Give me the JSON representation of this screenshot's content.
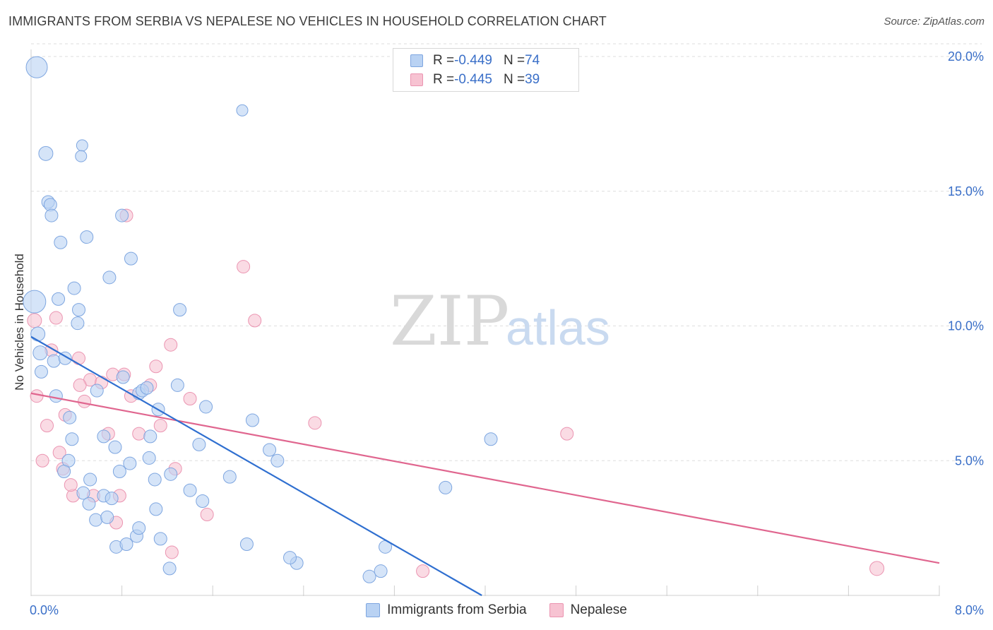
{
  "title": "IMMIGRANTS FROM SERBIA VS NEPALESE NO VEHICLES IN HOUSEHOLD CORRELATION CHART",
  "source": "Source: ZipAtlas.com",
  "watermark": {
    "zip": "ZIP",
    "atlas": "atlas"
  },
  "colors": {
    "blue_fill": "#b9d2f3",
    "blue_stroke": "#7ea6e0",
    "blue_line": "#2f6fd0",
    "pink_fill": "#f7c3d2",
    "pink_stroke": "#eb94b1",
    "pink_line": "#e0668f",
    "tick_text": "#3a6fc8"
  },
  "legend": {
    "rows": [
      {
        "r_label": "R = ",
        "r_value": "-0.449",
        "n_label": "N = ",
        "n_value": "74"
      },
      {
        "r_label": "R = ",
        "r_value": "-0.445",
        "n_label": "N = ",
        "n_value": "39"
      }
    ]
  },
  "chart_data": {
    "type": "scatter",
    "title": "IMMIGRANTS FROM SERBIA VS NEPALESE NO VEHICLES IN HOUSEHOLD CORRELATION CHART",
    "xlabel": "",
    "ylabel": "No Vehicles in Household",
    "xlim": [
      0,
      8
    ],
    "ylim": [
      0,
      20
    ],
    "x_tick_labels": [
      {
        "value": 0,
        "label": "0.0%"
      },
      {
        "value": 8,
        "label": "8.0%"
      }
    ],
    "y_tick_labels": [
      {
        "value": 5,
        "label": "5.0%"
      },
      {
        "value": 10,
        "label": "10.0%"
      },
      {
        "value": 15,
        "label": "15.0%"
      },
      {
        "value": 20,
        "label": "20.0%"
      }
    ],
    "grid": true,
    "legend_position": "top-center",
    "series": [
      {
        "name": "Immigrants from Serbia",
        "r": -0.449,
        "n": 74,
        "trend": {
          "x": [
            0,
            3.97
          ],
          "y": [
            9.6,
            0
          ]
        },
        "points": [
          [
            0.05,
            19.6,
            15
          ],
          [
            0.03,
            10.9,
            16
          ],
          [
            0.06,
            9.7,
            10
          ],
          [
            0.08,
            9.0,
            10
          ],
          [
            0.13,
            16.4,
            10
          ],
          [
            0.45,
            16.7,
            8
          ],
          [
            0.44,
            16.3,
            8
          ],
          [
            0.15,
            14.6,
            9
          ],
          [
            0.17,
            14.5,
            9
          ],
          [
            0.18,
            14.1,
            9
          ],
          [
            0.26,
            13.1,
            9
          ],
          [
            0.49,
            13.3,
            9
          ],
          [
            0.8,
            14.1,
            9
          ],
          [
            0.88,
            12.5,
            9
          ],
          [
            0.69,
            11.8,
            9
          ],
          [
            0.38,
            11.4,
            9
          ],
          [
            0.24,
            11.0,
            9
          ],
          [
            0.42,
            10.6,
            9
          ],
          [
            0.41,
            10.1,
            9
          ],
          [
            1.31,
            10.6,
            9
          ],
          [
            1.86,
            18.0,
            8
          ],
          [
            0.09,
            8.3,
            9
          ],
          [
            0.2,
            8.7,
            9
          ],
          [
            0.3,
            8.8,
            9
          ],
          [
            0.81,
            8.1,
            9
          ],
          [
            0.95,
            7.5,
            9
          ],
          [
            0.98,
            7.6,
            9
          ],
          [
            1.02,
            7.7,
            9
          ],
          [
            1.29,
            7.8,
            9
          ],
          [
            0.22,
            7.4,
            9
          ],
          [
            0.58,
            7.6,
            9
          ],
          [
            1.12,
            6.9,
            9
          ],
          [
            1.54,
            7.0,
            9
          ],
          [
            0.34,
            6.6,
            9
          ],
          [
            0.36,
            5.8,
            9
          ],
          [
            0.64,
            5.9,
            9
          ],
          [
            0.74,
            5.5,
            9
          ],
          [
            1.05,
            5.9,
            9
          ],
          [
            1.48,
            5.6,
            9
          ],
          [
            1.95,
            6.5,
            9
          ],
          [
            2.1,
            5.4,
            9
          ],
          [
            2.17,
            5.0,
            9
          ],
          [
            4.05,
            5.8,
            9
          ],
          [
            0.33,
            5.0,
            9
          ],
          [
            0.29,
            4.6,
            9
          ],
          [
            0.78,
            4.6,
            9
          ],
          [
            0.87,
            4.9,
            9
          ],
          [
            1.04,
            5.1,
            9
          ],
          [
            1.09,
            4.3,
            9
          ],
          [
            1.23,
            4.5,
            9
          ],
          [
            0.52,
            4.3,
            9
          ],
          [
            0.46,
            3.8,
            9
          ],
          [
            0.64,
            3.7,
            9
          ],
          [
            0.71,
            3.6,
            9
          ],
          [
            1.4,
            3.9,
            9
          ],
          [
            1.51,
            3.5,
            9
          ],
          [
            1.75,
            4.4,
            9
          ],
          [
            3.65,
            4.0,
            9
          ],
          [
            0.51,
            3.4,
            9
          ],
          [
            0.57,
            2.8,
            9
          ],
          [
            0.67,
            2.9,
            9
          ],
          [
            1.1,
            3.2,
            9
          ],
          [
            0.75,
            1.8,
            9
          ],
          [
            0.84,
            1.9,
            9
          ],
          [
            0.93,
            2.2,
            9
          ],
          [
            0.95,
            2.5,
            9
          ],
          [
            1.14,
            2.1,
            9
          ],
          [
            1.22,
            1.0,
            9
          ],
          [
            1.9,
            1.9,
            9
          ],
          [
            2.34,
            1.2,
            9
          ],
          [
            2.98,
            0.7,
            9
          ],
          [
            3.08,
            0.9,
            9
          ],
          [
            3.12,
            1.8,
            9
          ],
          [
            2.28,
            1.4,
            9
          ]
        ]
      },
      {
        "name": "Nepalese",
        "r": -0.445,
        "n": 39,
        "trend": {
          "x": [
            0,
            8
          ],
          "y": [
            7.5,
            1.2
          ]
        },
        "points": [
          [
            0.03,
            10.2,
            10
          ],
          [
            0.22,
            10.3,
            9
          ],
          [
            0.18,
            9.1,
            9
          ],
          [
            0.05,
            7.4,
            9
          ],
          [
            0.14,
            6.3,
            9
          ],
          [
            0.3,
            6.7,
            9
          ],
          [
            0.1,
            5.0,
            9
          ],
          [
            0.25,
            5.3,
            9
          ],
          [
            0.28,
            4.7,
            9
          ],
          [
            0.42,
            8.8,
            9
          ],
          [
            0.52,
            8.0,
            9
          ],
          [
            0.43,
            7.8,
            9
          ],
          [
            0.47,
            7.2,
            9
          ],
          [
            0.62,
            7.9,
            9
          ],
          [
            0.72,
            8.2,
            9
          ],
          [
            0.82,
            8.2,
            9
          ],
          [
            0.88,
            7.4,
            9
          ],
          [
            1.1,
            8.5,
            9
          ],
          [
            1.23,
            9.3,
            9
          ],
          [
            1.05,
            7.8,
            9
          ],
          [
            1.14,
            6.3,
            9
          ],
          [
            1.4,
            7.3,
            9
          ],
          [
            0.68,
            6.0,
            9
          ],
          [
            0.95,
            6.0,
            9
          ],
          [
            0.84,
            14.1,
            9
          ],
          [
            1.87,
            12.2,
            9
          ],
          [
            1.97,
            10.2,
            9
          ],
          [
            0.37,
            3.7,
            9
          ],
          [
            0.55,
            3.7,
            9
          ],
          [
            0.78,
            3.7,
            9
          ],
          [
            0.75,
            2.7,
            9
          ],
          [
            1.27,
            4.7,
            9
          ],
          [
            1.55,
            3.0,
            9
          ],
          [
            1.24,
            1.6,
            9
          ],
          [
            2.5,
            6.4,
            9
          ],
          [
            3.45,
            0.9,
            9
          ],
          [
            4.72,
            6.0,
            9
          ],
          [
            7.45,
            1.0,
            10
          ],
          [
            0.35,
            4.1,
            9
          ]
        ]
      }
    ]
  },
  "bottom_legend": [
    {
      "label": "Immigrants from Serbia"
    },
    {
      "label": "Nepalese"
    }
  ]
}
